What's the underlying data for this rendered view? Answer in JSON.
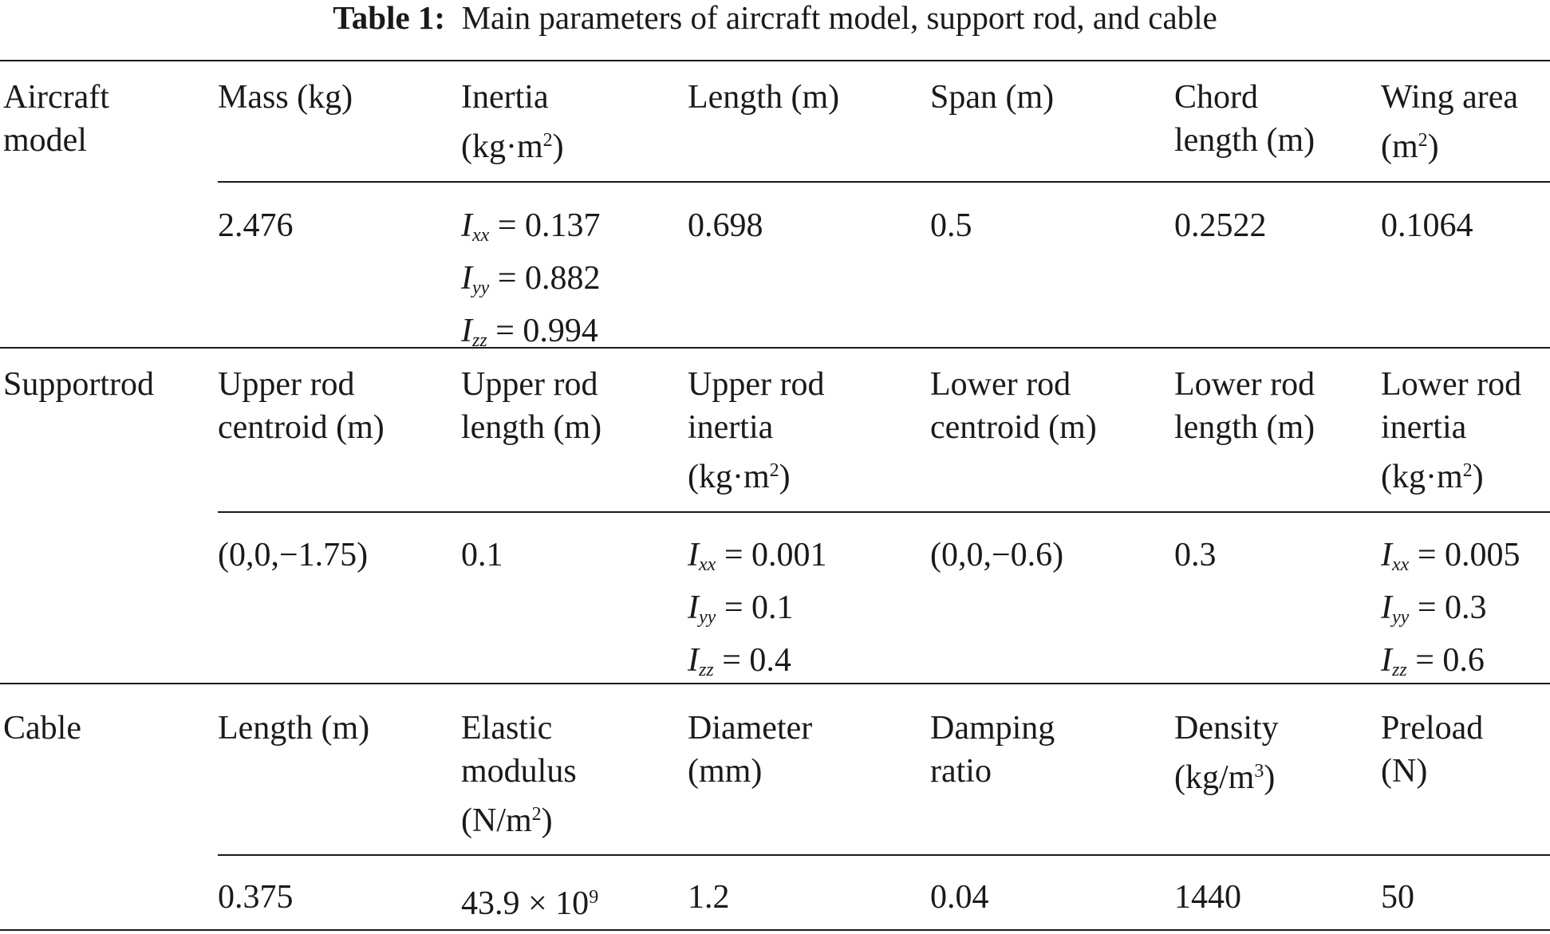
{
  "caption": {
    "label": "Table 1:",
    "text": "Main parameters of aircraft model, support rod, and cable"
  },
  "groups": [
    {
      "name_lines": [
        "Aircraft",
        "model"
      ],
      "headers": [
        [
          "Mass (kg)"
        ],
        [
          "Inertia",
          "(kg·m",
          "2",
          ")"
        ],
        [
          "Length (m)"
        ],
        [
          "Span (m)"
        ],
        [
          "Chord",
          "length (m)"
        ],
        [
          "Wing area",
          "(m",
          "2",
          ")"
        ]
      ],
      "values": [
        "2.476",
        {
          "Ixx": "0.137",
          "Iyy": "0.882",
          "Izz": "0.994"
        },
        "0.698",
        "0.5",
        "0.2522",
        "0.1064"
      ]
    },
    {
      "name_lines": [
        "Supportrod"
      ],
      "headers": [
        [
          "Upper rod",
          "centroid (m)"
        ],
        [
          "Upper rod",
          "length (m)"
        ],
        [
          "Upper rod",
          "inertia",
          "(kg·m",
          "2",
          ")"
        ],
        [
          "Lower rod",
          "centroid (m)"
        ],
        [
          "Lower rod",
          "length (m)"
        ],
        [
          "Lower rod",
          "inertia",
          "(kg·m",
          "2",
          ")"
        ]
      ],
      "values": [
        "(0,0,−1.75)",
        "0.1",
        {
          "Ixx": "0.001",
          "Iyy": "0.1",
          "Izz": "0.4"
        },
        "(0,0,−0.6)",
        "0.3",
        {
          "Ixx": "0.005",
          "Iyy": "0.3",
          "Izz": "0.6"
        }
      ]
    },
    {
      "name_lines": [
        "Cable"
      ],
      "headers": [
        [
          "Length (m)"
        ],
        [
          "Elastic",
          "modulus",
          "(N/m",
          "2",
          ")"
        ],
        [
          "Diameter",
          "(mm)"
        ],
        [
          "Damping",
          "ratio"
        ],
        [
          "Density",
          "(kg/m",
          "3",
          ")"
        ],
        [
          "Preload",
          "(N)"
        ]
      ],
      "values": [
        "0.375",
        {
          "base": "43.9 × 10",
          "exp": "9"
        },
        "1.2",
        "0.04",
        "1440",
        "50"
      ]
    }
  ],
  "inertia_symbols": {
    "I": "I",
    "xx": "xx",
    "yy": "yy",
    "zz": "zz",
    "eq": " = "
  }
}
